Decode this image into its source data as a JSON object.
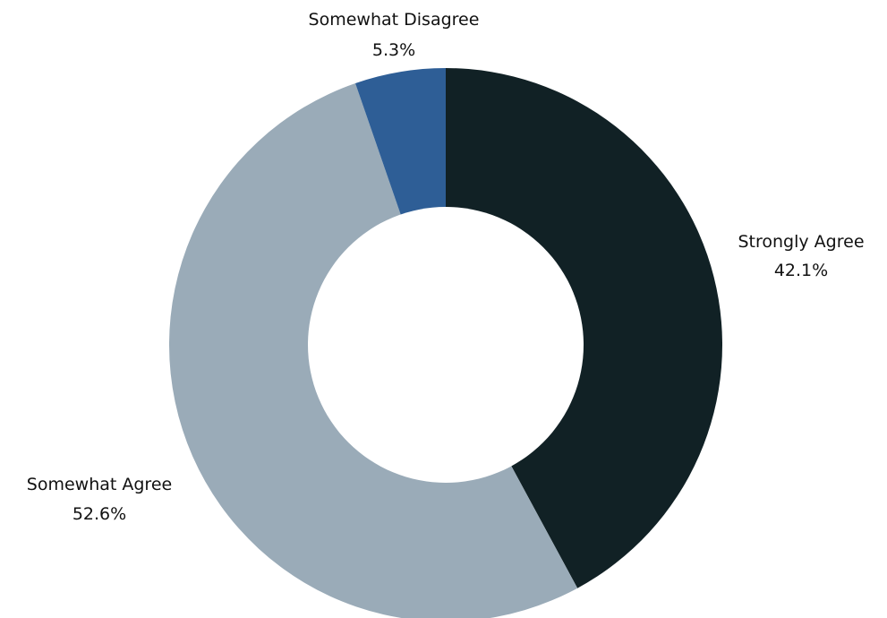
{
  "chart_data": {
    "type": "pie",
    "title": "",
    "donut": true,
    "slices": [
      {
        "label": "Strongly Agree",
        "value": 42.1,
        "display": "42.1%",
        "color": "#112125"
      },
      {
        "label": "Somewhat Agree",
        "value": 52.6,
        "display": "52.6%",
        "color": "#9aabb8"
      },
      {
        "label": "Somewhat Disagree",
        "value": 5.3,
        "display": "5.3%",
        "color": "#2e5e96"
      }
    ],
    "start_angle": "12 o'clock",
    "direction": "clockwise",
    "legend": "none"
  }
}
